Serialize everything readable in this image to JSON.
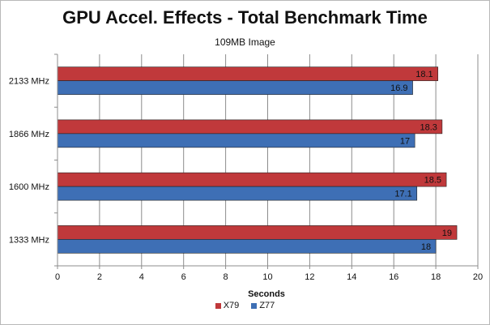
{
  "chart_data": {
    "type": "bar",
    "orientation": "horizontal",
    "title": "GPU Accel. Effects - Total Benchmark Time",
    "subtitle": "109MB  Image",
    "categories": [
      "2133 MHz",
      "1866 MHz",
      "1600 MHz",
      "1333 MHz"
    ],
    "series": [
      {
        "name": "X79",
        "values": [
          18.1,
          18.3,
          18.5,
          19
        ],
        "labels": [
          "18.1",
          "18.3",
          "18.5",
          "19"
        ],
        "color": "#c0393b"
      },
      {
        "name": "Z77",
        "values": [
          16.9,
          17,
          17.1,
          18
        ],
        "labels": [
          "16.9",
          "17",
          "17.1",
          "18"
        ],
        "color": "#3e6fb5"
      }
    ],
    "xlabel": "Seconds",
    "ylabel": "",
    "xlim": [
      0,
      20
    ],
    "xticks": [
      0,
      2,
      4,
      6,
      8,
      10,
      12,
      14,
      16,
      18,
      20
    ],
    "grid": true,
    "legend_position": "bottom"
  }
}
